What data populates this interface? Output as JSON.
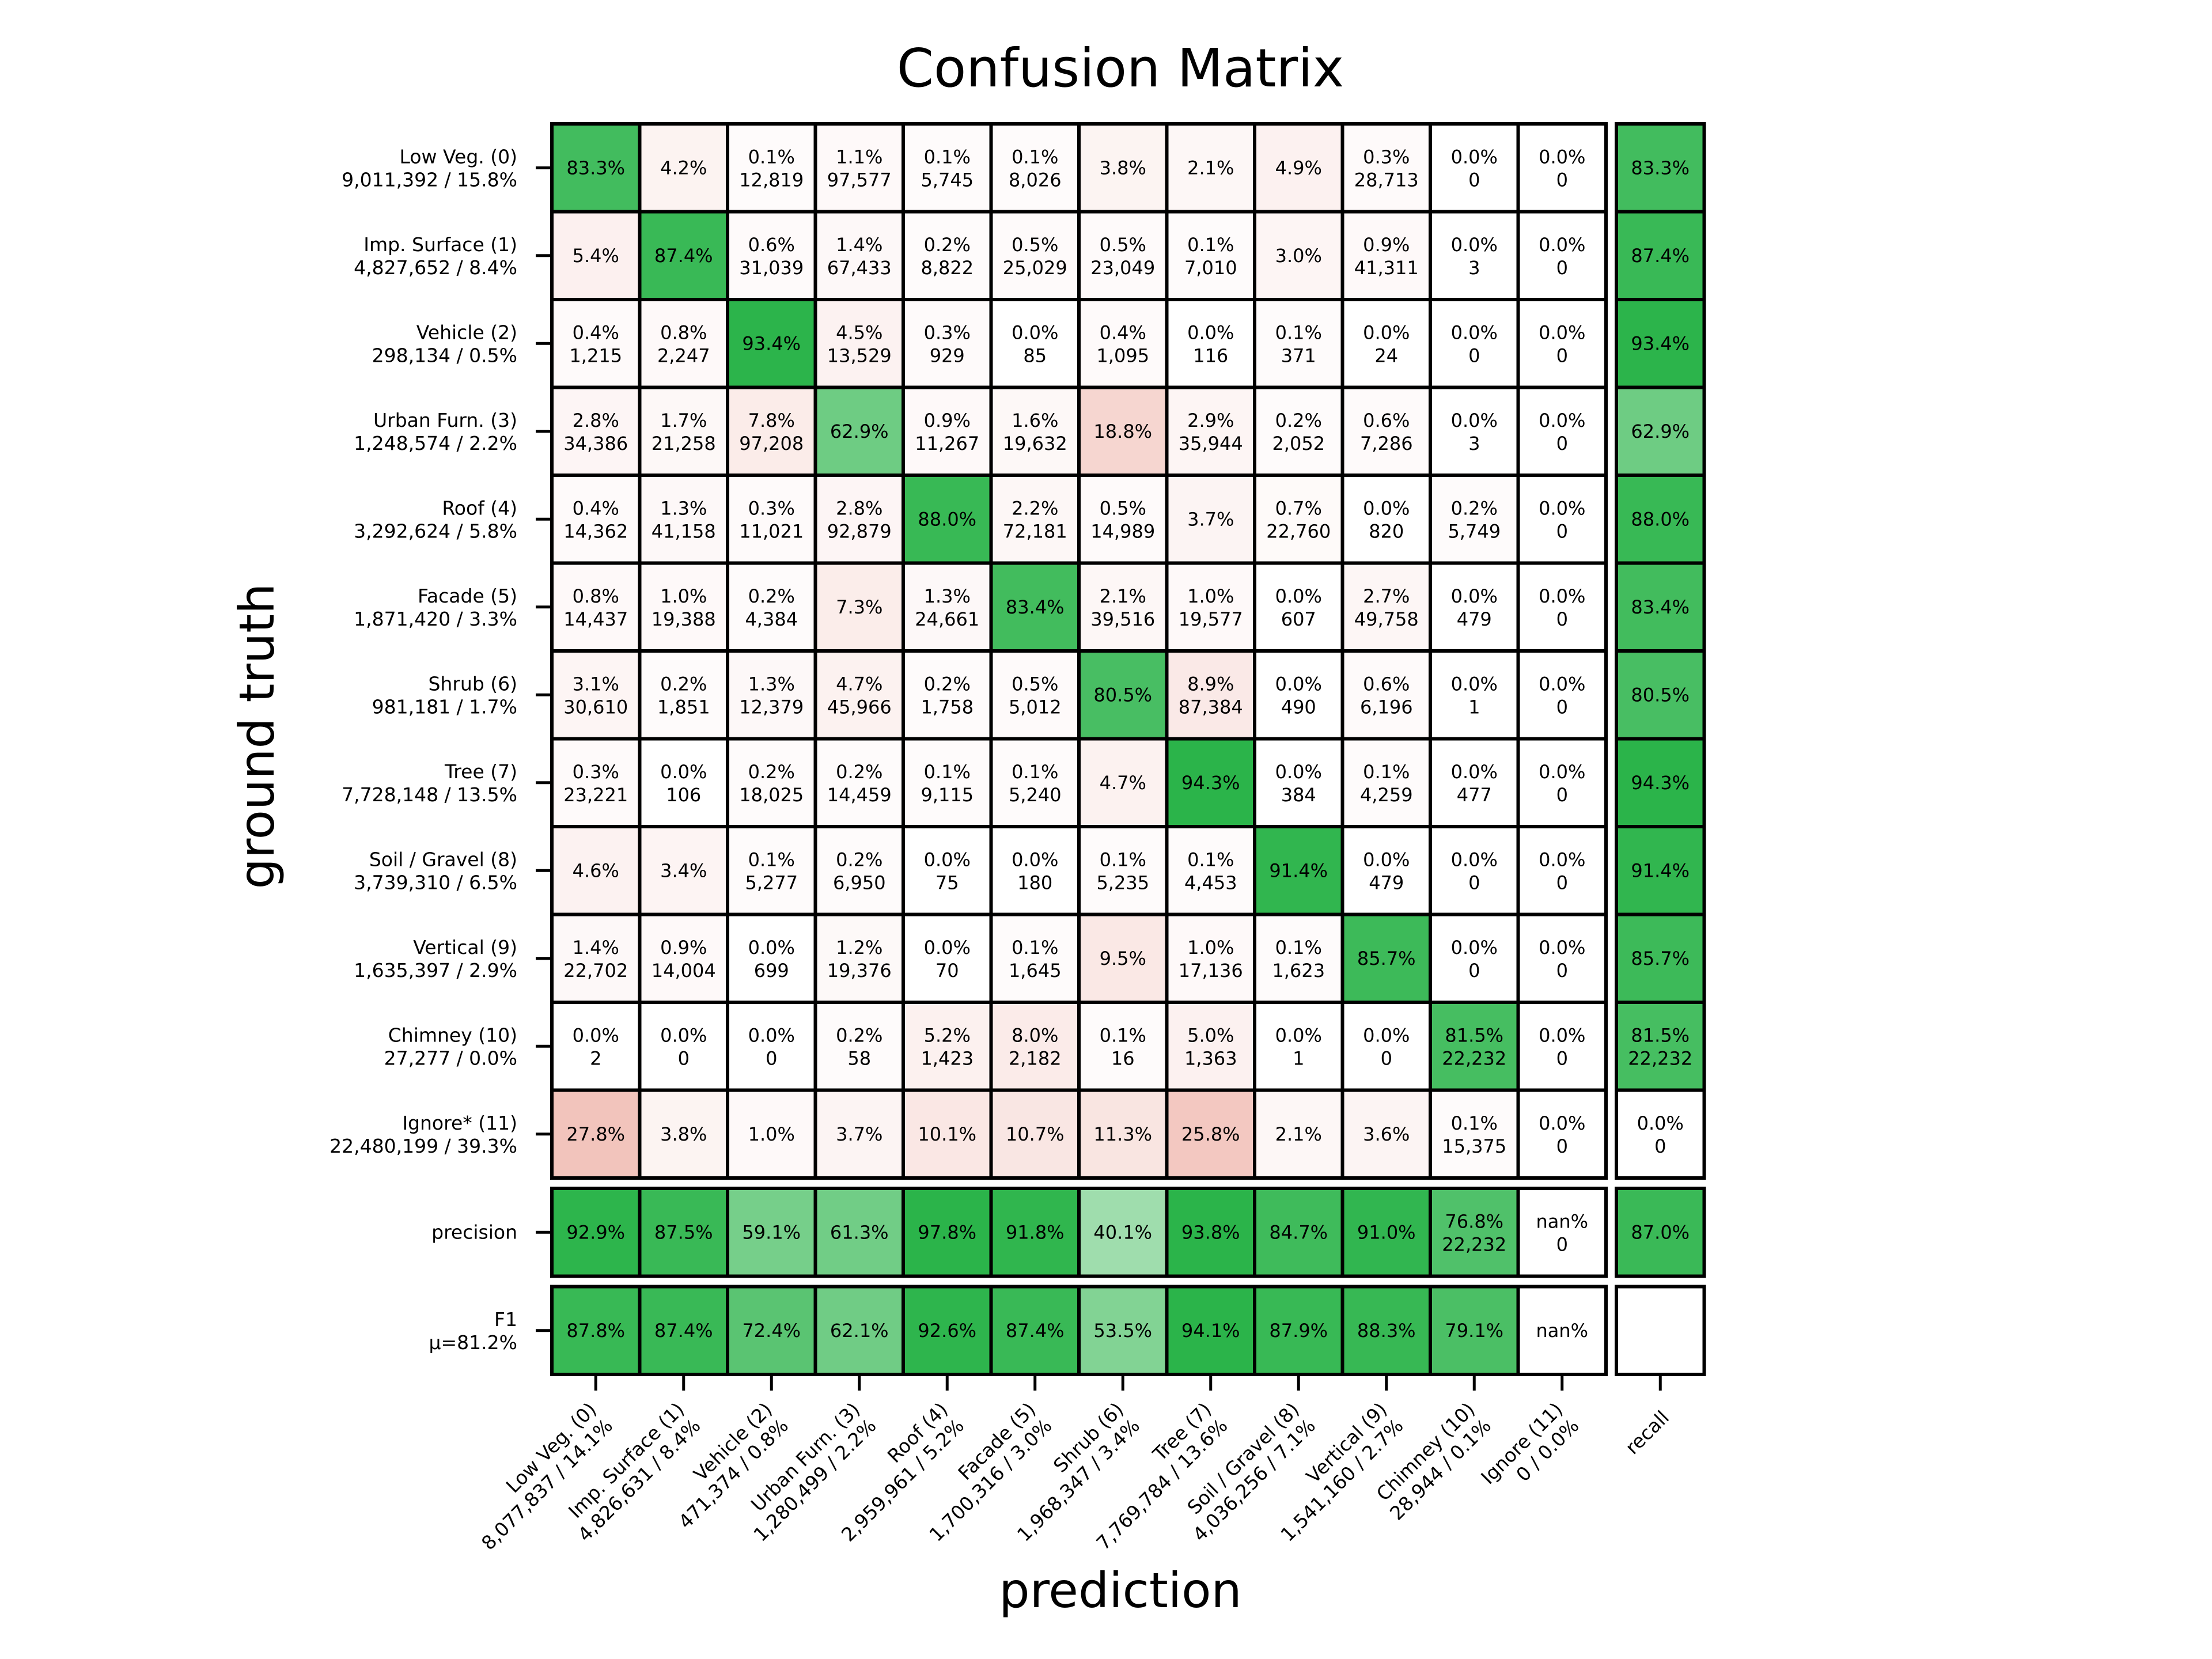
{
  "chart_data": {
    "type": "heatmap",
    "title": "Confusion Matrix",
    "xlabel": "prediction",
    "ylabel": "ground truth",
    "colors": {
      "high": "#2bb44a",
      "error": "#f1c0b7",
      "grid": "#000000",
      "background": "#ffffff"
    },
    "row_labels": [
      [
        "Low Veg.  (0)",
        "9,011,392 / 15.8%"
      ],
      [
        "Imp. Surface  (1)",
        "4,827,652 / 8.4%"
      ],
      [
        "Vehicle  (2)",
        "298,134 / 0.5%"
      ],
      [
        "Urban Furn.  (3)",
        "1,248,574 / 2.2%"
      ],
      [
        "Roof  (4)",
        "3,292,624 / 5.8%"
      ],
      [
        "Facade  (5)",
        "1,871,420 / 3.3%"
      ],
      [
        "Shrub  (6)",
        "981,181 / 1.7%"
      ],
      [
        "Tree  (7)",
        "7,728,148 / 13.5%"
      ],
      [
        "Soil / Gravel  (8)",
        "3,739,310 / 6.5%"
      ],
      [
        "Vertical  (9)",
        "1,635,397 / 2.9%"
      ],
      [
        "Chimney  (10)",
        "27,277 / 0.0%"
      ],
      [
        "Ignore*  (11)",
        "22,480,199 / 39.3%"
      ],
      [
        "precision"
      ],
      [
        "F1",
        "μ=81.2%"
      ]
    ],
    "column_labels": [
      [
        "Low Veg.  (0)",
        "8,077,837 / 14.1%"
      ],
      [
        "Imp. Surface  (1)",
        "4,826,631 / 8.4%"
      ],
      [
        "Vehicle  (2)",
        "471,374 / 0.8%"
      ],
      [
        "Urban Furn.  (3)",
        "1,280,499 / 2.2%"
      ],
      [
        "Roof  (4)",
        "2,959,961 / 5.2%"
      ],
      [
        "Facade  (5)",
        "1,700,316 / 3.0%"
      ],
      [
        "Shrub  (6)",
        "1,968,347 / 3.4%"
      ],
      [
        "Tree  (7)",
        "7,769,784 / 13.6%"
      ],
      [
        "Soil / Gravel  (8)",
        "4,036,256 / 7.1%"
      ],
      [
        "Vertical  (9)",
        "1,541,160 / 2.7%"
      ],
      [
        "Chimney  (10)",
        "28,944 / 0.1%"
      ],
      [
        "Ignore  (11)",
        "0 / 0.0%"
      ],
      [
        "recall"
      ]
    ],
    "cells": [
      [
        [
          "83.3%",
          ""
        ],
        [
          "4.2%",
          ""
        ],
        [
          "0.1%",
          "12,819"
        ],
        [
          "1.1%",
          "97,577"
        ],
        [
          "0.1%",
          "5,745"
        ],
        [
          "0.1%",
          "8,026"
        ],
        [
          "3.8%",
          ""
        ],
        [
          "2.1%",
          ""
        ],
        [
          "4.9%",
          ""
        ],
        [
          "0.3%",
          "28,713"
        ],
        [
          "0.0%",
          "0"
        ],
        [
          "0.0%",
          "0"
        ],
        [
          "83.3%",
          ""
        ]
      ],
      [
        [
          "5.4%",
          ""
        ],
        [
          "87.4%",
          ""
        ],
        [
          "0.6%",
          "31,039"
        ],
        [
          "1.4%",
          "67,433"
        ],
        [
          "0.2%",
          "8,822"
        ],
        [
          "0.5%",
          "25,029"
        ],
        [
          "0.5%",
          "23,049"
        ],
        [
          "0.1%",
          "7,010"
        ],
        [
          "3.0%",
          ""
        ],
        [
          "0.9%",
          "41,311"
        ],
        [
          "0.0%",
          "3"
        ],
        [
          "0.0%",
          "0"
        ],
        [
          "87.4%",
          ""
        ]
      ],
      [
        [
          "0.4%",
          "1,215"
        ],
        [
          "0.8%",
          "2,247"
        ],
        [
          "93.4%",
          ""
        ],
        [
          "4.5%",
          "13,529"
        ],
        [
          "0.3%",
          "929"
        ],
        [
          "0.0%",
          "85"
        ],
        [
          "0.4%",
          "1,095"
        ],
        [
          "0.0%",
          "116"
        ],
        [
          "0.1%",
          "371"
        ],
        [
          "0.0%",
          "24"
        ],
        [
          "0.0%",
          "0"
        ],
        [
          "0.0%",
          "0"
        ],
        [
          "93.4%",
          ""
        ]
      ],
      [
        [
          "2.8%",
          "34,386"
        ],
        [
          "1.7%",
          "21,258"
        ],
        [
          "7.8%",
          "97,208"
        ],
        [
          "62.9%",
          ""
        ],
        [
          "0.9%",
          "11,267"
        ],
        [
          "1.6%",
          "19,632"
        ],
        [
          "18.8%",
          ""
        ],
        [
          "2.9%",
          "35,944"
        ],
        [
          "0.2%",
          "2,052"
        ],
        [
          "0.6%",
          "7,286"
        ],
        [
          "0.0%",
          "3"
        ],
        [
          "0.0%",
          "0"
        ],
        [
          "62.9%",
          ""
        ]
      ],
      [
        [
          "0.4%",
          "14,362"
        ],
        [
          "1.3%",
          "41,158"
        ],
        [
          "0.3%",
          "11,021"
        ],
        [
          "2.8%",
          "92,879"
        ],
        [
          "88.0%",
          ""
        ],
        [
          "2.2%",
          "72,181"
        ],
        [
          "0.5%",
          "14,989"
        ],
        [
          "3.7%",
          ""
        ],
        [
          "0.7%",
          "22,760"
        ],
        [
          "0.0%",
          "820"
        ],
        [
          "0.2%",
          "5,749"
        ],
        [
          "0.0%",
          "0"
        ],
        [
          "88.0%",
          ""
        ]
      ],
      [
        [
          "0.8%",
          "14,437"
        ],
        [
          "1.0%",
          "19,388"
        ],
        [
          "0.2%",
          "4,384"
        ],
        [
          "7.3%",
          ""
        ],
        [
          "1.3%",
          "24,661"
        ],
        [
          "83.4%",
          ""
        ],
        [
          "2.1%",
          "39,516"
        ],
        [
          "1.0%",
          "19,577"
        ],
        [
          "0.0%",
          "607"
        ],
        [
          "2.7%",
          "49,758"
        ],
        [
          "0.0%",
          "479"
        ],
        [
          "0.0%",
          "0"
        ],
        [
          "83.4%",
          ""
        ]
      ],
      [
        [
          "3.1%",
          "30,610"
        ],
        [
          "0.2%",
          "1,851"
        ],
        [
          "1.3%",
          "12,379"
        ],
        [
          "4.7%",
          "45,966"
        ],
        [
          "0.2%",
          "1,758"
        ],
        [
          "0.5%",
          "5,012"
        ],
        [
          "80.5%",
          ""
        ],
        [
          "8.9%",
          "87,384"
        ],
        [
          "0.0%",
          "490"
        ],
        [
          "0.6%",
          "6,196"
        ],
        [
          "0.0%",
          "1"
        ],
        [
          "0.0%",
          "0"
        ],
        [
          "80.5%",
          ""
        ]
      ],
      [
        [
          "0.3%",
          "23,221"
        ],
        [
          "0.0%",
          "106"
        ],
        [
          "0.2%",
          "18,025"
        ],
        [
          "0.2%",
          "14,459"
        ],
        [
          "0.1%",
          "9,115"
        ],
        [
          "0.1%",
          "5,240"
        ],
        [
          "4.7%",
          ""
        ],
        [
          "94.3%",
          ""
        ],
        [
          "0.0%",
          "384"
        ],
        [
          "0.1%",
          "4,259"
        ],
        [
          "0.0%",
          "477"
        ],
        [
          "0.0%",
          "0"
        ],
        [
          "94.3%",
          ""
        ]
      ],
      [
        [
          "4.6%",
          ""
        ],
        [
          "3.4%",
          ""
        ],
        [
          "0.1%",
          "5,277"
        ],
        [
          "0.2%",
          "6,950"
        ],
        [
          "0.0%",
          "75"
        ],
        [
          "0.0%",
          "180"
        ],
        [
          "0.1%",
          "5,235"
        ],
        [
          "0.1%",
          "4,453"
        ],
        [
          "91.4%",
          ""
        ],
        [
          "0.0%",
          "479"
        ],
        [
          "0.0%",
          "0"
        ],
        [
          "0.0%",
          "0"
        ],
        [
          "91.4%",
          ""
        ]
      ],
      [
        [
          "1.4%",
          "22,702"
        ],
        [
          "0.9%",
          "14,004"
        ],
        [
          "0.0%",
          "699"
        ],
        [
          "1.2%",
          "19,376"
        ],
        [
          "0.0%",
          "70"
        ],
        [
          "0.1%",
          "1,645"
        ],
        [
          "9.5%",
          ""
        ],
        [
          "1.0%",
          "17,136"
        ],
        [
          "0.1%",
          "1,623"
        ],
        [
          "85.7%",
          ""
        ],
        [
          "0.0%",
          "0"
        ],
        [
          "0.0%",
          "0"
        ],
        [
          "85.7%",
          ""
        ]
      ],
      [
        [
          "0.0%",
          "2"
        ],
        [
          "0.0%",
          "0"
        ],
        [
          "0.0%",
          "0"
        ],
        [
          "0.2%",
          "58"
        ],
        [
          "5.2%",
          "1,423"
        ],
        [
          "8.0%",
          "2,182"
        ],
        [
          "0.1%",
          "16"
        ],
        [
          "5.0%",
          "1,363"
        ],
        [
          "0.0%",
          "1"
        ],
        [
          "0.0%",
          "0"
        ],
        [
          "81.5%",
          "22,232"
        ],
        [
          "0.0%",
          "0"
        ],
        [
          "81.5%",
          "22,232"
        ]
      ],
      [
        [
          "27.8%",
          ""
        ],
        [
          "3.8%",
          ""
        ],
        [
          "1.0%",
          ""
        ],
        [
          "3.7%",
          ""
        ],
        [
          "10.1%",
          ""
        ],
        [
          "10.7%",
          ""
        ],
        [
          "11.3%",
          ""
        ],
        [
          "25.8%",
          ""
        ],
        [
          "2.1%",
          ""
        ],
        [
          "3.6%",
          ""
        ],
        [
          "0.1%",
          "15,375"
        ],
        [
          "0.0%",
          "0"
        ],
        [
          "0.0%",
          "0"
        ]
      ],
      [
        [
          "92.9%",
          ""
        ],
        [
          "87.5%",
          ""
        ],
        [
          "59.1%",
          ""
        ],
        [
          "61.3%",
          ""
        ],
        [
          "97.8%",
          ""
        ],
        [
          "91.8%",
          ""
        ],
        [
          "40.1%",
          ""
        ],
        [
          "93.8%",
          ""
        ],
        [
          "84.7%",
          ""
        ],
        [
          "91.0%",
          ""
        ],
        [
          "76.8%",
          "22,232"
        ],
        [
          "nan%",
          "0"
        ],
        [
          "87.0%",
          ""
        ]
      ],
      [
        [
          "87.8%",
          ""
        ],
        [
          "87.4%",
          ""
        ],
        [
          "72.4%",
          ""
        ],
        [
          "62.1%",
          ""
        ],
        [
          "92.6%",
          ""
        ],
        [
          "87.4%",
          ""
        ],
        [
          "53.5%",
          ""
        ],
        [
          "94.1%",
          ""
        ],
        [
          "87.9%",
          ""
        ],
        [
          "88.3%",
          ""
        ],
        [
          "79.1%",
          ""
        ],
        [
          "nan%",
          ""
        ],
        [
          "",
          ""
        ]
      ]
    ]
  }
}
